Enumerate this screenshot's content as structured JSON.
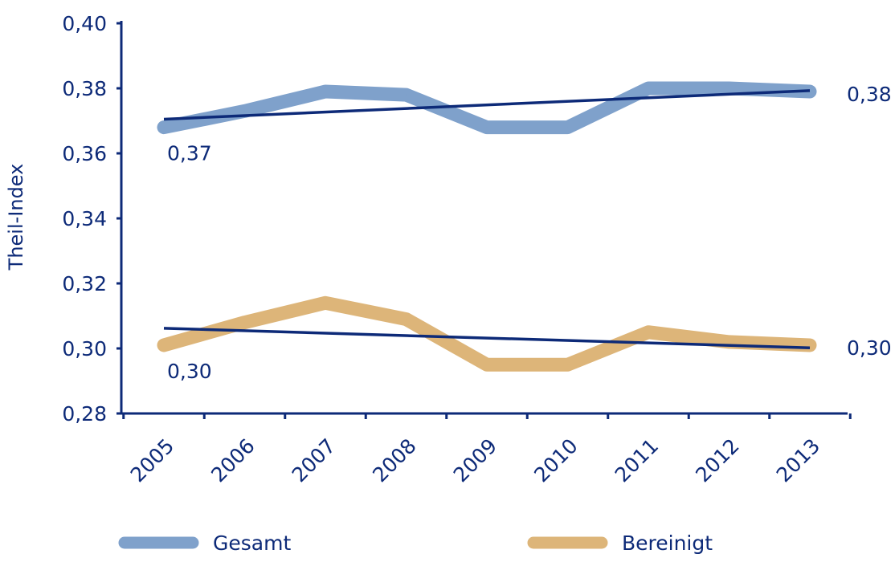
{
  "chart_data": {
    "type": "line",
    "x": [
      "2005",
      "2006",
      "2007",
      "2008",
      "2009",
      "2010",
      "2011",
      "2012",
      "2013"
    ],
    "ylabel": "Theil-Index",
    "xlabel": "",
    "ylim": [
      0.28,
      0.4
    ],
    "yticks": [
      0.28,
      0.3,
      0.32,
      0.34,
      0.36,
      0.38,
      0.4
    ],
    "ytick_labels": [
      "0,28",
      "0,30",
      "0,32",
      "0,34",
      "0,36",
      "0,38",
      "0,40"
    ],
    "series": [
      {
        "name": "Gesamt",
        "color": "#7fa1cb",
        "values": [
          0.368,
          0.373,
          0.379,
          0.378,
          0.368,
          0.368,
          0.38,
          0.38,
          0.379
        ],
        "trend": [
          0.3705,
          0.3793
        ],
        "trend_color": "#0d2a78",
        "label_start": "0,37",
        "label_end": "0,38"
      },
      {
        "name": "Bereinigt",
        "color": "#ddb579",
        "values": [
          0.301,
          0.308,
          0.314,
          0.309,
          0.295,
          0.295,
          0.305,
          0.302,
          0.301
        ],
        "trend": [
          0.3062,
          0.3002
        ],
        "trend_color": "#0d2a78",
        "label_start": "0,30",
        "label_end": "0,30"
      }
    ],
    "legend": {
      "placement": "bottom",
      "items": [
        "Gesamt",
        "Bereinigt"
      ]
    }
  }
}
